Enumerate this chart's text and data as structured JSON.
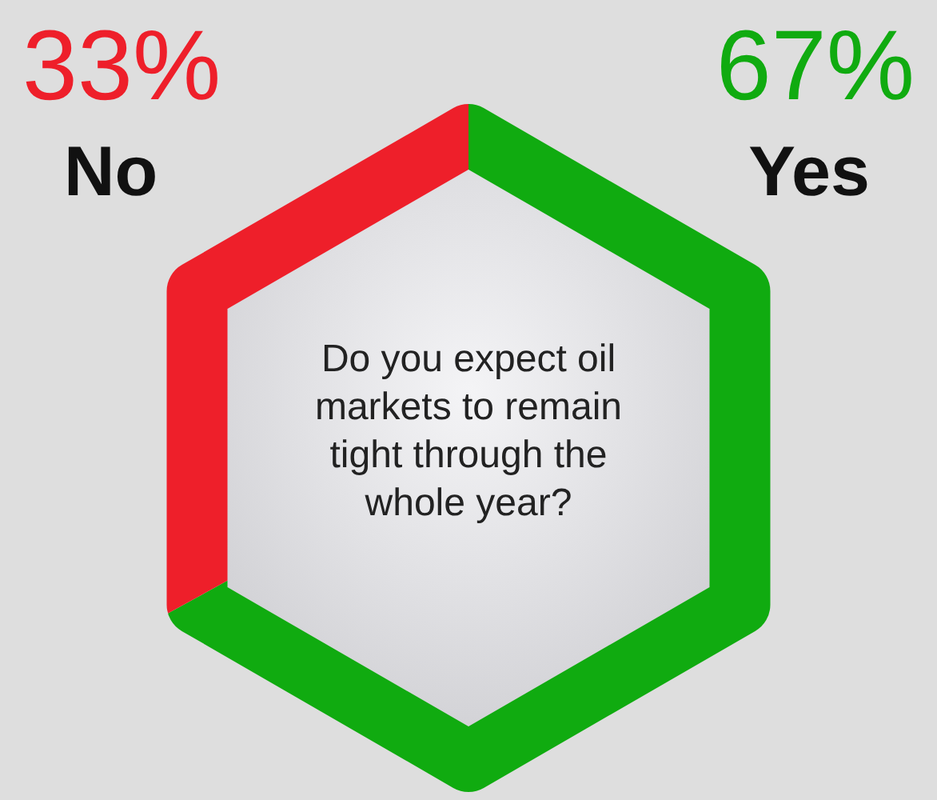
{
  "chart_data": {
    "type": "donut",
    "title": "Do you expect oil markets to remain tight through the whole year?",
    "categories": [
      "Yes",
      "No"
    ],
    "values": [
      67,
      33
    ],
    "value_labels": [
      "67%",
      "33%"
    ],
    "colors": [
      "#10ab10",
      "#ee1f2a"
    ]
  }
}
